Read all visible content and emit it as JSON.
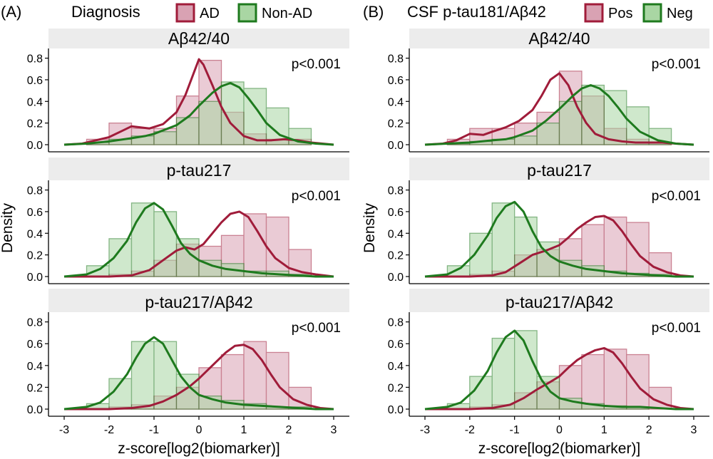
{
  "chart_data": [
    {
      "type": "histogram+density",
      "panel_letter": "(A)",
      "legend_title": "Diagnosis",
      "legend_items": [
        {
          "label": "AD",
          "fill": "#d9a2b3",
          "stroke": "#a01c3a"
        },
        {
          "label": "Non-AD",
          "fill": "#a9d6a3",
          "stroke": "#1e7a1e"
        }
      ],
      "xlabel": "z-score[log2(biomarker)]",
      "ylabel": "Density",
      "xlim": [
        -3,
        3
      ],
      "ylim": [
        0,
        0.85
      ],
      "xticks": [
        "-3",
        "-2",
        "-1",
        "0",
        "1",
        "2",
        "3"
      ],
      "yticks": [
        "0.0",
        "0.2",
        "0.4",
        "0.6",
        "0.8"
      ],
      "bin_edges": [
        -2.5,
        -2.0,
        -1.5,
        -1.0,
        -0.5,
        0.0,
        0.5,
        1.0,
        1.5,
        2.0,
        2.5
      ],
      "facets": [
        {
          "title": "Aβ42/40",
          "pvalue": "p<0.001",
          "series": [
            {
              "name": "AD",
              "hist": [
                0.05,
                0.2,
                0.15,
                0.15,
                0.45,
                0.78,
                0.3,
                0.1,
                0.05,
                0.05
              ],
              "density_x": [
                -3,
                -2.6,
                -2.3,
                -2,
                -1.7,
                -1.5,
                -1.3,
                -1.1,
                -0.8,
                -0.5,
                -0.3,
                -0.1,
                0,
                0.1,
                0.3,
                0.5,
                0.7,
                1.0,
                1.3,
                1.6,
                1.9,
                2.2,
                2.5,
                3
              ],
              "density_y": [
                0.0,
                0.01,
                0.04,
                0.07,
                0.13,
                0.17,
                0.16,
                0.15,
                0.19,
                0.3,
                0.46,
                0.68,
                0.79,
                0.74,
                0.55,
                0.35,
                0.2,
                0.08,
                0.04,
                0.04,
                0.05,
                0.04,
                0.02,
                0.0
              ]
            },
            {
              "name": "Non-AD",
              "hist": [
                0.02,
                0.05,
                0.08,
                0.12,
                0.25,
                0.4,
                0.58,
                0.52,
                0.34,
                0.15
              ],
              "density_x": [
                -3,
                -2.5,
                -2,
                -1.5,
                -1.2,
                -1,
                -0.5,
                -0.2,
                0,
                0.3,
                0.5,
                0.7,
                0.9,
                1.1,
                1.3,
                1.5,
                1.8,
                2.2,
                2.6,
                3
              ],
              "density_y": [
                0.0,
                0.01,
                0.03,
                0.06,
                0.08,
                0.1,
                0.18,
                0.27,
                0.36,
                0.48,
                0.54,
                0.57,
                0.53,
                0.43,
                0.32,
                0.2,
                0.09,
                0.03,
                0.01,
                0.0
              ]
            }
          ]
        },
        {
          "title": "p-tau217",
          "pvalue": "p<0.001",
          "series": [
            {
              "name": "AD",
              "hist": [
                0.0,
                0.02,
                0.05,
                0.15,
                0.3,
                0.28,
                0.38,
                0.58,
                0.55,
                0.25
              ],
              "density_x": [
                -3,
                -2,
                -1.5,
                -1.1,
                -0.8,
                -0.5,
                -0.3,
                -0.1,
                0.1,
                0.3,
                0.5,
                0.7,
                0.9,
                1.1,
                1.3,
                1.5,
                1.7,
                2.0,
                2.3,
                2.6,
                3
              ],
              "density_y": [
                0.0,
                0.0,
                0.01,
                0.06,
                0.15,
                0.24,
                0.27,
                0.25,
                0.3,
                0.4,
                0.5,
                0.58,
                0.6,
                0.55,
                0.42,
                0.28,
                0.17,
                0.08,
                0.04,
                0.02,
                0.0
              ]
            },
            {
              "name": "Non-AD",
              "hist": [
                0.1,
                0.35,
                0.68,
                0.6,
                0.35,
                0.15,
                0.12,
                0.05,
                0.05,
                0.02
              ],
              "density_x": [
                -3,
                -2.5,
                -2.2,
                -1.9,
                -1.6,
                -1.4,
                -1.2,
                -1.0,
                -0.8,
                -0.6,
                -0.4,
                -0.2,
                0,
                0.3,
                0.6,
                1.0,
                1.4,
                1.8,
                2.2,
                2.6,
                3
              ],
              "density_y": [
                0.0,
                0.02,
                0.07,
                0.17,
                0.33,
                0.5,
                0.63,
                0.68,
                0.62,
                0.47,
                0.31,
                0.21,
                0.15,
                0.1,
                0.07,
                0.05,
                0.03,
                0.02,
                0.01,
                0.0,
                0.0
              ]
            }
          ]
        },
        {
          "title": "p-tau217/Aβ42",
          "pvalue": "p<0.001",
          "series": [
            {
              "name": "AD",
              "hist": [
                0.0,
                0.02,
                0.04,
                0.12,
                0.2,
                0.38,
                0.5,
                0.62,
                0.52,
                0.2
              ],
              "density_x": [
                -3,
                -2,
                -1.5,
                -1.1,
                -0.8,
                -0.5,
                -0.2,
                0,
                0.2,
                0.4,
                0.6,
                0.8,
                1.0,
                1.2,
                1.4,
                1.6,
                1.8,
                2.1,
                2.4,
                2.7,
                3
              ],
              "density_y": [
                0.0,
                0.0,
                0.01,
                0.03,
                0.07,
                0.13,
                0.21,
                0.28,
                0.36,
                0.44,
                0.52,
                0.58,
                0.59,
                0.55,
                0.45,
                0.32,
                0.2,
                0.09,
                0.04,
                0.01,
                0.0
              ]
            },
            {
              "name": "Non-AD",
              "hist": [
                0.05,
                0.28,
                0.62,
                0.62,
                0.32,
                0.12,
                0.08,
                0.05,
                0.02,
                0.02
              ],
              "density_x": [
                -3,
                -2.5,
                -2.2,
                -1.9,
                -1.6,
                -1.4,
                -1.2,
                -1.0,
                -0.8,
                -0.6,
                -0.4,
                -0.2,
                0,
                0.3,
                0.6,
                1.0,
                1.4,
                1.8,
                2.2,
                2.6,
                3
              ],
              "density_y": [
                0.0,
                0.02,
                0.06,
                0.16,
                0.32,
                0.47,
                0.6,
                0.66,
                0.6,
                0.45,
                0.3,
                0.2,
                0.13,
                0.09,
                0.06,
                0.04,
                0.03,
                0.02,
                0.01,
                0.0,
                0.0
              ]
            }
          ]
        }
      ]
    },
    {
      "type": "histogram+density",
      "panel_letter": "(B)",
      "legend_title": "CSF p-tau181/Aβ42",
      "legend_items": [
        {
          "label": "Pos",
          "fill": "#d9a2b3",
          "stroke": "#a01c3a"
        },
        {
          "label": "Neg",
          "fill": "#a9d6a3",
          "stroke": "#1e7a1e"
        }
      ],
      "xlabel": "z-score[log2(biomarker)]",
      "ylabel": "Density",
      "xlim": [
        -3,
        3
      ],
      "ylim": [
        0,
        0.85
      ],
      "xticks": [
        "-3",
        "-2",
        "-1",
        "0",
        "1",
        "2",
        "3"
      ],
      "yticks": [
        "0.0",
        "0.2",
        "0.4",
        "0.6",
        "0.8"
      ],
      "bin_edges": [
        -2.5,
        -2.0,
        -1.5,
        -1.0,
        -0.5,
        0.0,
        0.5,
        1.0,
        1.5,
        2.0,
        2.5
      ],
      "facets": [
        {
          "title": "Aβ42/40",
          "pvalue": "p<0.001",
          "series": [
            {
              "name": "Pos",
              "hist": [
                0.05,
                0.15,
                0.15,
                0.2,
                0.3,
                0.68,
                0.45,
                0.15,
                0.05,
                0.02
              ],
              "density_x": [
                -3,
                -2.6,
                -2.3,
                -2,
                -1.7,
                -1.5,
                -1.2,
                -0.9,
                -0.6,
                -0.4,
                -0.2,
                0,
                0.2,
                0.4,
                0.6,
                0.8,
                1.1,
                1.4,
                1.7,
                2.0,
                2.3,
                2.6,
                3
              ],
              "density_y": [
                0.0,
                0.01,
                0.04,
                0.1,
                0.09,
                0.12,
                0.16,
                0.22,
                0.32,
                0.45,
                0.6,
                0.66,
                0.55,
                0.35,
                0.2,
                0.1,
                0.05,
                0.03,
                0.02,
                0.02,
                0.02,
                0.01,
                0.0
              ]
            },
            {
              "name": "Neg",
              "hist": [
                0.01,
                0.03,
                0.05,
                0.08,
                0.2,
                0.4,
                0.55,
                0.5,
                0.35,
                0.15
              ],
              "density_x": [
                -3,
                -2.5,
                -2,
                -1.5,
                -1.2,
                -1,
                -0.6,
                -0.3,
                0,
                0.3,
                0.5,
                0.7,
                0.9,
                1.1,
                1.3,
                1.5,
                1.8,
                2.2,
                2.6,
                3
              ],
              "density_y": [
                0.0,
                0.01,
                0.02,
                0.04,
                0.05,
                0.07,
                0.13,
                0.22,
                0.33,
                0.45,
                0.52,
                0.55,
                0.52,
                0.45,
                0.35,
                0.24,
                0.12,
                0.04,
                0.01,
                0.0
              ]
            }
          ]
        },
        {
          "title": "p-tau217",
          "pvalue": "p<0.001",
          "series": [
            {
              "name": "Pos",
              "hist": [
                0.0,
                0.02,
                0.05,
                0.2,
                0.25,
                0.35,
                0.48,
                0.55,
                0.5,
                0.22
              ],
              "density_x": [
                -3,
                -2,
                -1.5,
                -1.2,
                -0.9,
                -0.6,
                -0.3,
                0,
                0.2,
                0.4,
                0.6,
                0.8,
                1.0,
                1.2,
                1.4,
                1.6,
                1.8,
                2.1,
                2.4,
                2.7,
                3
              ],
              "density_y": [
                0.0,
                0.0,
                0.01,
                0.04,
                0.12,
                0.2,
                0.24,
                0.29,
                0.36,
                0.44,
                0.5,
                0.55,
                0.56,
                0.52,
                0.42,
                0.3,
                0.19,
                0.09,
                0.04,
                0.01,
                0.0
              ]
            },
            {
              "name": "Neg",
              "hist": [
                0.1,
                0.4,
                0.68,
                0.55,
                0.32,
                0.15,
                0.1,
                0.05,
                0.03,
                0.02
              ],
              "density_x": [
                -3,
                -2.5,
                -2.2,
                -1.9,
                -1.6,
                -1.4,
                -1.2,
                -1.0,
                -0.8,
                -0.6,
                -0.4,
                -0.2,
                0,
                0.3,
                0.6,
                1.0,
                1.4,
                1.8,
                2.2,
                2.6,
                3
              ],
              "density_y": [
                0.0,
                0.02,
                0.08,
                0.2,
                0.38,
                0.54,
                0.65,
                0.69,
                0.6,
                0.42,
                0.27,
                0.19,
                0.14,
                0.1,
                0.07,
                0.05,
                0.03,
                0.02,
                0.01,
                0.0,
                0.0
              ]
            }
          ]
        },
        {
          "title": "p-tau217/Aβ42",
          "pvalue": "p<0.001",
          "series": [
            {
              "name": "Pos",
              "hist": [
                0.0,
                0.02,
                0.04,
                0.15,
                0.25,
                0.4,
                0.5,
                0.55,
                0.5,
                0.2
              ],
              "density_x": [
                -3,
                -2,
                -1.5,
                -1.1,
                -0.8,
                -0.5,
                -0.2,
                0,
                0.2,
                0.4,
                0.6,
                0.8,
                1.0,
                1.2,
                1.4,
                1.6,
                1.8,
                2.1,
                2.4,
                2.7,
                3
              ],
              "density_y": [
                0.0,
                0.0,
                0.01,
                0.04,
                0.1,
                0.18,
                0.25,
                0.3,
                0.38,
                0.45,
                0.5,
                0.54,
                0.56,
                0.52,
                0.42,
                0.3,
                0.19,
                0.09,
                0.04,
                0.01,
                0.0
              ]
            },
            {
              "name": "Neg",
              "hist": [
                0.05,
                0.3,
                0.65,
                0.72,
                0.3,
                0.1,
                0.05,
                0.03,
                0.02,
                0.0
              ],
              "density_x": [
                -3,
                -2.5,
                -2.2,
                -1.9,
                -1.6,
                -1.4,
                -1.2,
                -1.0,
                -0.8,
                -0.6,
                -0.4,
                -0.2,
                0,
                0.3,
                0.6,
                1.0,
                1.4,
                1.8,
                2.2,
                2.6,
                3
              ],
              "density_y": [
                0.0,
                0.02,
                0.06,
                0.17,
                0.35,
                0.52,
                0.66,
                0.72,
                0.63,
                0.44,
                0.27,
                0.16,
                0.1,
                0.07,
                0.05,
                0.03,
                0.02,
                0.02,
                0.01,
                0.0,
                0.0
              ]
            }
          ]
        }
      ]
    }
  ]
}
